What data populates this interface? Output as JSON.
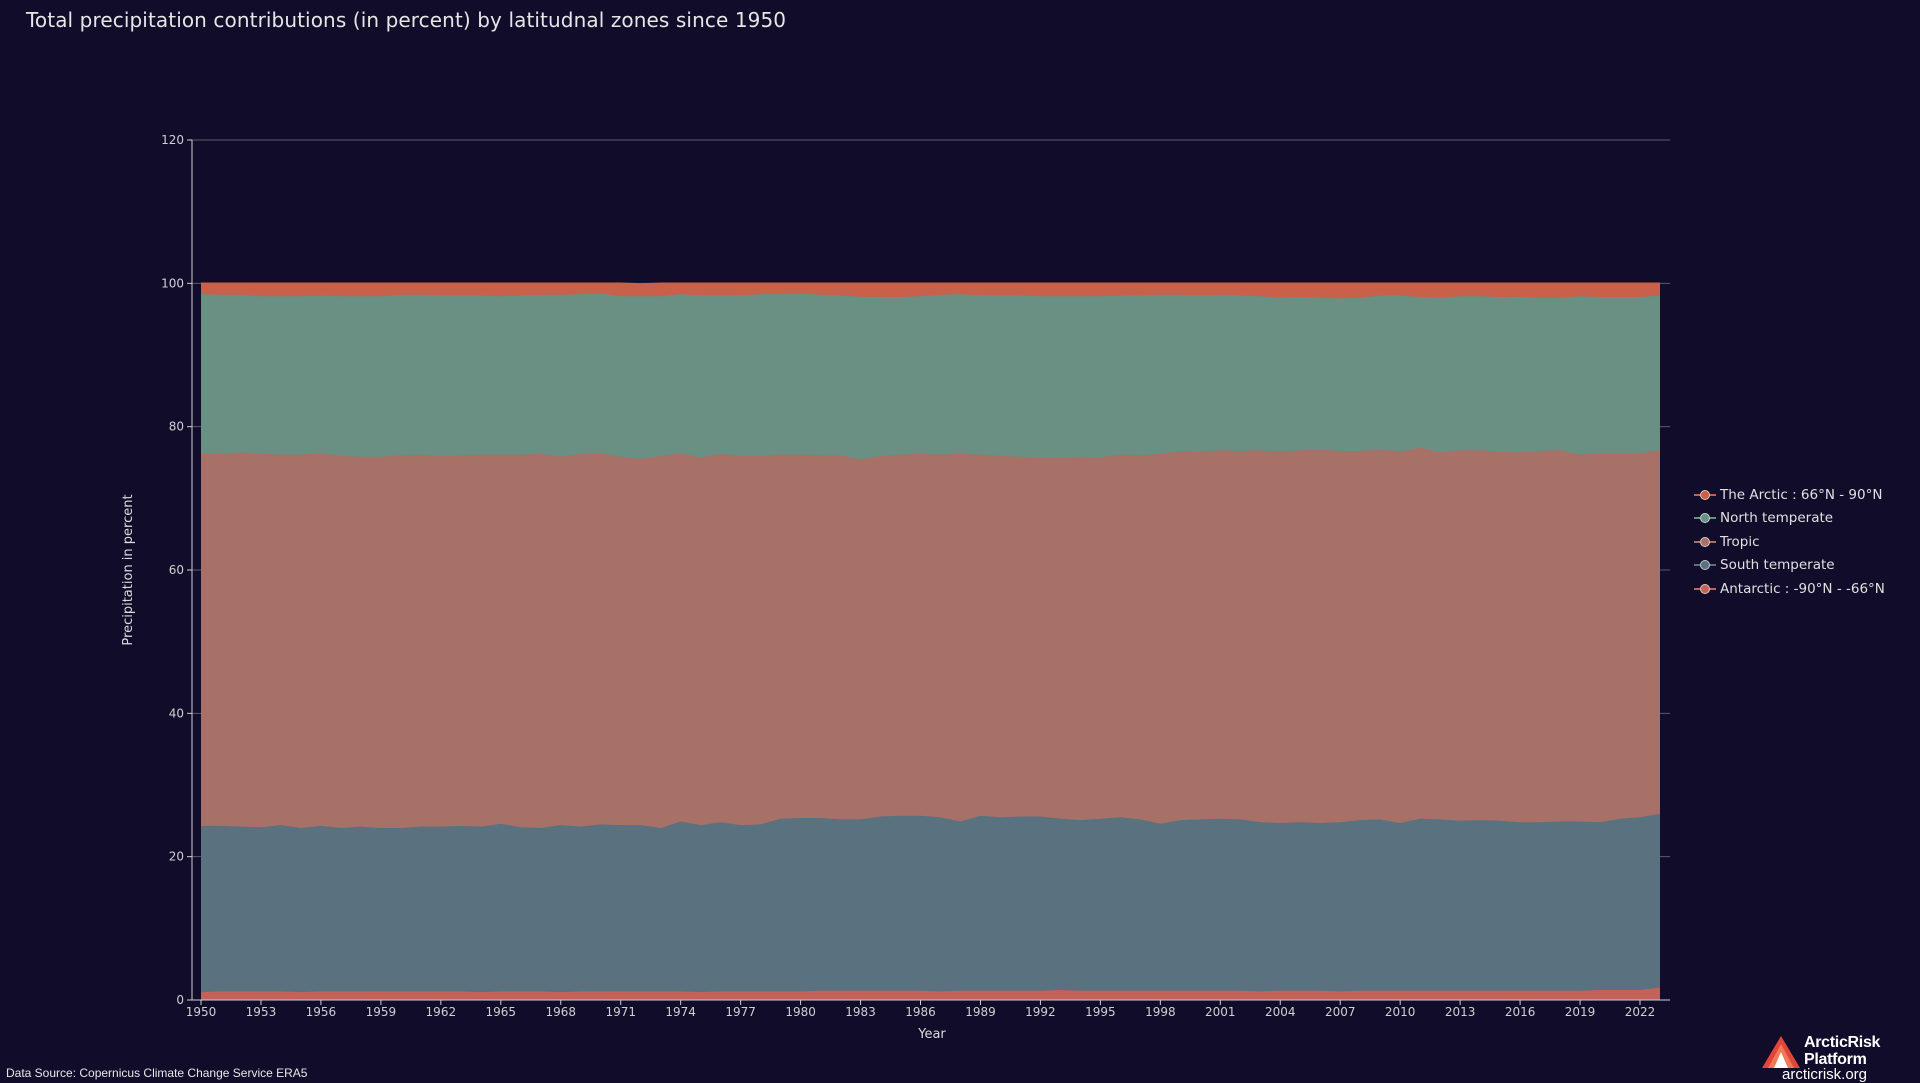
{
  "title": "Total precipitation contributions (in percent) by latitudnal zones since 1950",
  "source": "Data Source: Copernicus Climate Change Service ERA5",
  "brand": {
    "name_line1": "ArcticRisk",
    "name_line2": "Platform",
    "url": "arcticrisk.org"
  },
  "chart_data": {
    "type": "area",
    "stacked": true,
    "xlabel": "Year",
    "ylabel": "Precipitation in percent",
    "ylim": [
      0,
      120
    ],
    "yticks": [
      0,
      20,
      40,
      60,
      80,
      100,
      120
    ],
    "xlim": [
      1950,
      2023
    ],
    "xticks": [
      1950,
      1953,
      1956,
      1959,
      1962,
      1965,
      1968,
      1971,
      1974,
      1977,
      1980,
      1983,
      1986,
      1989,
      1992,
      1995,
      1998,
      2001,
      2004,
      2007,
      2010,
      2013,
      2016,
      2019,
      2022
    ],
    "grid": "horizontal",
    "legend_position": "right",
    "x": [
      1950,
      1951,
      1952,
      1953,
      1954,
      1955,
      1956,
      1957,
      1958,
      1959,
      1960,
      1961,
      1962,
      1963,
      1964,
      1965,
      1966,
      1967,
      1968,
      1969,
      1970,
      1971,
      1972,
      1973,
      1974,
      1975,
      1976,
      1977,
      1978,
      1979,
      1980,
      1981,
      1982,
      1983,
      1984,
      1985,
      1986,
      1987,
      1988,
      1989,
      1990,
      1991,
      1992,
      1993,
      1994,
      1995,
      1996,
      1997,
      1998,
      1999,
      2000,
      2001,
      2002,
      2003,
      2004,
      2005,
      2006,
      2007,
      2008,
      2009,
      2010,
      2011,
      2012,
      2013,
      2014,
      2015,
      2016,
      2017,
      2018,
      2019,
      2020,
      2021,
      2022,
      2023
    ],
    "series": [
      {
        "name": "Antarctic : -90°N - -66°N",
        "color": "#c4625a",
        "values": [
          1.1,
          1.2,
          1.2,
          1.2,
          1.2,
          1.1,
          1.2,
          1.2,
          1.2,
          1.2,
          1.2,
          1.2,
          1.2,
          1.2,
          1.1,
          1.2,
          1.2,
          1.2,
          1.1,
          1.2,
          1.2,
          1.2,
          1.2,
          1.2,
          1.2,
          1.1,
          1.2,
          1.2,
          1.2,
          1.2,
          1.2,
          1.3,
          1.3,
          1.3,
          1.3,
          1.3,
          1.3,
          1.2,
          1.3,
          1.3,
          1.3,
          1.3,
          1.3,
          1.4,
          1.3,
          1.3,
          1.3,
          1.3,
          1.3,
          1.3,
          1.3,
          1.3,
          1.3,
          1.2,
          1.3,
          1.3,
          1.3,
          1.2,
          1.3,
          1.3,
          1.3,
          1.3,
          1.3,
          1.3,
          1.3,
          1.3,
          1.3,
          1.3,
          1.3,
          1.3,
          1.4,
          1.4,
          1.4,
          1.7
        ]
      },
      {
        "name": "South temperate",
        "color": "#5a7180",
        "values": [
          23.2,
          23.1,
          23.0,
          22.9,
          23.2,
          22.9,
          23.1,
          22.8,
          23.0,
          22.8,
          22.8,
          23.0,
          23.0,
          23.1,
          23.1,
          23.4,
          22.9,
          22.8,
          23.3,
          23.0,
          23.3,
          23.2,
          23.2,
          22.8,
          23.7,
          23.3,
          23.6,
          23.2,
          23.3,
          24.1,
          24.2,
          24.1,
          23.9,
          23.9,
          24.3,
          24.4,
          24.4,
          24.3,
          23.6,
          24.4,
          24.2,
          24.3,
          24.3,
          23.9,
          23.8,
          24.0,
          24.2,
          23.9,
          23.3,
          23.8,
          23.9,
          24.0,
          23.9,
          23.6,
          23.4,
          23.5,
          23.4,
          23.6,
          23.8,
          23.9,
          23.4,
          24.0,
          23.9,
          23.7,
          23.8,
          23.7,
          23.5,
          23.5,
          23.6,
          23.6,
          23.4,
          23.9,
          24.1,
          24.3
        ]
      },
      {
        "name": "Tropic",
        "color": "#a87168",
        "values": [
          51.9,
          52.0,
          52.2,
          52.1,
          51.7,
          52.1,
          52.0,
          51.9,
          51.6,
          51.8,
          52.0,
          51.9,
          51.7,
          51.7,
          51.9,
          51.5,
          52.0,
          52.2,
          51.4,
          52.0,
          51.8,
          51.4,
          51.1,
          51.9,
          51.4,
          51.3,
          51.4,
          51.5,
          51.4,
          50.8,
          50.7,
          50.6,
          50.8,
          50.2,
          50.3,
          50.4,
          50.5,
          50.6,
          51.3,
          50.4,
          50.4,
          50.2,
          50.1,
          50.4,
          50.7,
          50.4,
          50.6,
          50.8,
          51.6,
          51.5,
          51.3,
          51.4,
          51.4,
          51.9,
          51.8,
          51.9,
          52.1,
          51.8,
          51.5,
          51.6,
          51.8,
          51.8,
          51.2,
          51.7,
          51.6,
          51.5,
          51.6,
          51.8,
          51.8,
          51.2,
          51.5,
          51.0,
          50.8,
          50.7
        ]
      },
      {
        "name": "North temperate",
        "color": "#6a8f83",
        "values": [
          22.3,
          22.1,
          22.0,
          22.0,
          22.1,
          22.1,
          22.0,
          22.3,
          22.4,
          22.4,
          22.4,
          22.3,
          22.4,
          22.3,
          22.2,
          22.1,
          22.2,
          22.2,
          22.6,
          22.3,
          22.3,
          22.4,
          22.7,
          22.3,
          22.2,
          22.6,
          22.1,
          22.4,
          22.6,
          22.4,
          22.5,
          22.4,
          22.3,
          22.7,
          22.2,
          22.0,
          22.0,
          22.3,
          22.3,
          22.2,
          22.4,
          22.5,
          22.5,
          22.5,
          22.4,
          22.5,
          22.2,
          22.3,
          22.2,
          21.8,
          21.8,
          21.7,
          21.7,
          21.5,
          21.5,
          21.4,
          21.2,
          21.3,
          21.4,
          21.5,
          21.8,
          21.0,
          21.6,
          21.5,
          21.5,
          21.6,
          21.7,
          21.4,
          21.3,
          22.1,
          21.8,
          21.8,
          21.8,
          21.6
        ]
      },
      {
        "name": "The Arctic : 66°N - 90°N",
        "color": "#c8604a",
        "values": [
          1.5,
          1.6,
          1.6,
          1.8,
          1.8,
          1.8,
          1.7,
          1.8,
          1.8,
          1.8,
          1.6,
          1.6,
          1.7,
          1.7,
          1.7,
          1.8,
          1.7,
          1.6,
          1.6,
          1.5,
          1.4,
          1.8,
          1.7,
          1.8,
          1.5,
          1.7,
          1.7,
          1.7,
          1.5,
          1.5,
          1.4,
          1.6,
          1.7,
          1.9,
          1.9,
          1.9,
          1.8,
          1.6,
          1.5,
          1.7,
          1.7,
          1.7,
          1.8,
          1.8,
          1.8,
          1.8,
          1.7,
          1.7,
          1.6,
          1.6,
          1.7,
          1.6,
          1.7,
          1.8,
          2.0,
          1.9,
          2.0,
          2.1,
          2.0,
          1.7,
          1.7,
          1.9,
          2.0,
          1.8,
          1.8,
          1.9,
          1.9,
          2.0,
          2.0,
          1.8,
          1.9,
          1.9,
          1.9,
          1.7
        ]
      }
    ]
  }
}
